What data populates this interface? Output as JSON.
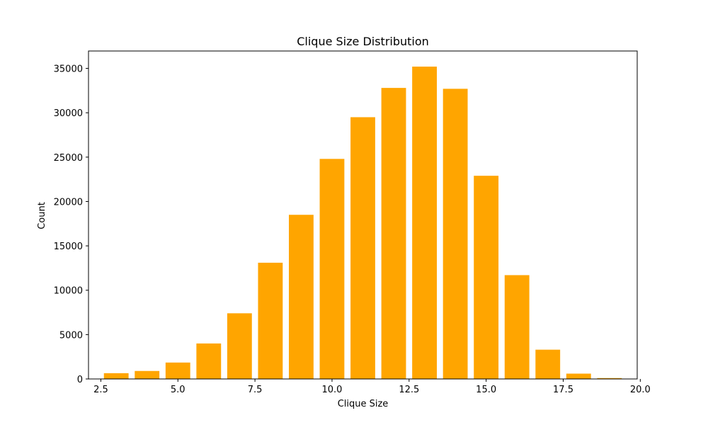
{
  "chart_data": {
    "type": "bar",
    "title": "Clique Size Distribution",
    "xlabel": "Clique Size",
    "ylabel": "Count",
    "bar_color": "#ffa500",
    "x": [
      3,
      4,
      5,
      6,
      7,
      8,
      9,
      10,
      11,
      12,
      13,
      14,
      15,
      16,
      17,
      18,
      19
    ],
    "values": [
      650,
      900,
      1850,
      4000,
      7400,
      13100,
      18500,
      24800,
      29500,
      32800,
      35200,
      32700,
      22900,
      11700,
      3300,
      600,
      100
    ],
    "xlim": [
      2.1,
      19.9
    ],
    "ylim": [
      0,
      36960
    ],
    "x_ticks": [
      2.5,
      5.0,
      7.5,
      10.0,
      12.5,
      15.0,
      17.5,
      20.0
    ],
    "x_tick_labels": [
      "2.5",
      "5.0",
      "7.5",
      "10.0",
      "12.5",
      "15.0",
      "17.5",
      "20.0"
    ],
    "y_ticks": [
      0,
      5000,
      10000,
      15000,
      20000,
      25000,
      30000,
      35000
    ],
    "y_tick_labels": [
      "0",
      "5000",
      "10000",
      "15000",
      "20000",
      "25000",
      "30000",
      "35000"
    ],
    "grid": false,
    "legend": "none"
  }
}
